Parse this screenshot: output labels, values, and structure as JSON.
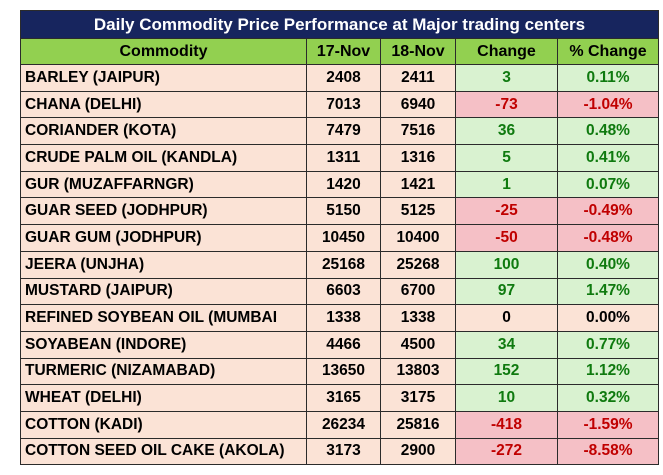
{
  "table": {
    "title": "Daily Commodity Price Performance at Major trading centers",
    "headers": {
      "commodity": "Commodity",
      "d1": "17-Nov",
      "d2": "18-Nov",
      "change": "Change",
      "pct": "% Change"
    },
    "rows": [
      {
        "commodity": "BARLEY (JAIPUR)",
        "d1": "2408",
        "d2": "2411",
        "change": "3",
        "pct": "0.11%",
        "dir": "pos"
      },
      {
        "commodity": "CHANA (DELHI)",
        "d1": "7013",
        "d2": "6940",
        "change": "-73",
        "pct": "-1.04%",
        "dir": "neg"
      },
      {
        "commodity": "CORIANDER (KOTA)",
        "d1": "7479",
        "d2": "7516",
        "change": "36",
        "pct": "0.48%",
        "dir": "pos"
      },
      {
        "commodity": "CRUDE PALM OIL (KANDLA)",
        "d1": "1311",
        "d2": "1316",
        "change": "5",
        "pct": "0.41%",
        "dir": "pos"
      },
      {
        "commodity": "GUR (MUZAFFARNGR)",
        "d1": "1420",
        "d2": "1421",
        "change": "1",
        "pct": "0.07%",
        "dir": "pos"
      },
      {
        "commodity": "GUAR SEED (JODHPUR)",
        "d1": "5150",
        "d2": "5125",
        "change": "-25",
        "pct": "-0.49%",
        "dir": "neg"
      },
      {
        "commodity": "GUAR GUM (JODHPUR)",
        "d1": "10450",
        "d2": "10400",
        "change": "-50",
        "pct": "-0.48%",
        "dir": "neg"
      },
      {
        "commodity": "JEERA (UNJHA)",
        "d1": "25168",
        "d2": "25268",
        "change": "100",
        "pct": "0.40%",
        "dir": "pos"
      },
      {
        "commodity": "MUSTARD (JAIPUR)",
        "d1": "6603",
        "d2": "6700",
        "change": "97",
        "pct": "1.47%",
        "dir": "pos"
      },
      {
        "commodity": "REFINED SOYBEAN OIL (MUMBAI",
        "d1": "1338",
        "d2": "1338",
        "change": "0",
        "pct": "0.00%",
        "dir": "zero"
      },
      {
        "commodity": "SOYABEAN (INDORE)",
        "d1": "4466",
        "d2": "4500",
        "change": "34",
        "pct": "0.77%",
        "dir": "pos"
      },
      {
        "commodity": "TURMERIC (NIZAMABAD)",
        "d1": "13650",
        "d2": "13803",
        "change": "152",
        "pct": "1.12%",
        "dir": "pos"
      },
      {
        "commodity": "WHEAT (DELHI)",
        "d1": "3165",
        "d2": "3175",
        "change": "10",
        "pct": "0.32%",
        "dir": "pos"
      },
      {
        "commodity": "COTTON (KADI)",
        "d1": "26234",
        "d2": "25816",
        "change": "-418",
        "pct": "-1.59%",
        "dir": "neg"
      },
      {
        "commodity": "COTTON SEED OIL CAKE (AKOLA)",
        "d1": "3173",
        "d2": "2900",
        "change": "-272",
        "pct": "-8.58%",
        "dir": "neg"
      }
    ],
    "colors": {
      "title_bg": "#17255e",
      "header_bg": "#92d050",
      "base_bg": "#fbe3d6",
      "positive_bg": "#d9f2d0",
      "positive_text": "#0f7a0f",
      "negative_bg": "#f5c0c6",
      "negative_text": "#c00000"
    }
  }
}
